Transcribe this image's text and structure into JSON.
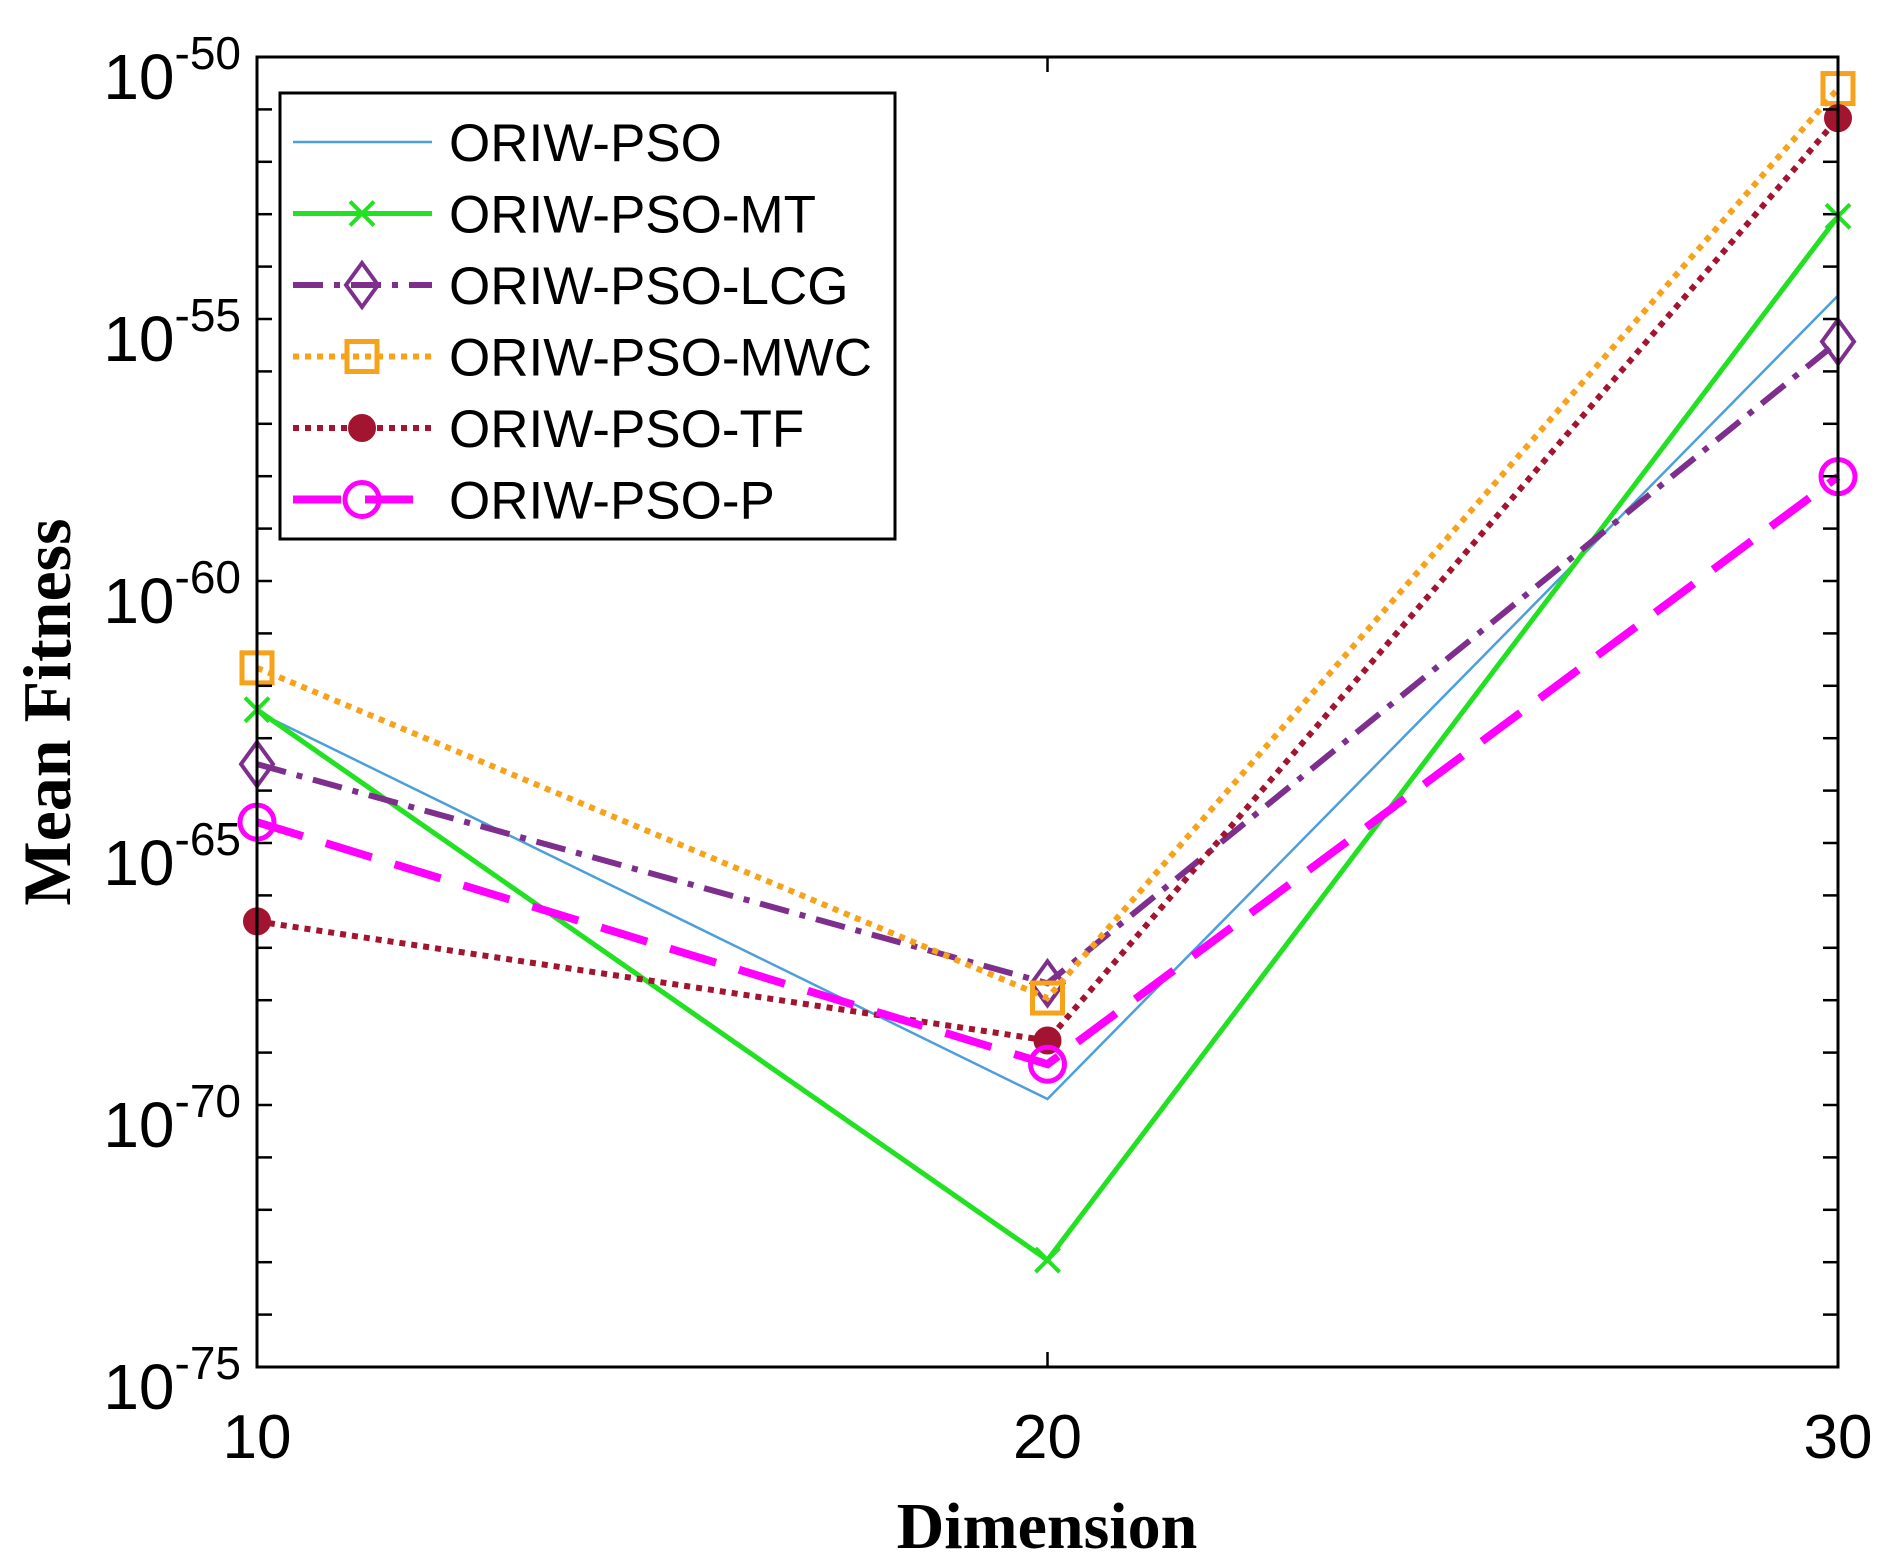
{
  "chart_data": {
    "type": "line",
    "xlabel": "Dimension",
    "ylabel": "Mean Fitness",
    "x": [
      10,
      20,
      30
    ],
    "xlim": [
      10,
      30
    ],
    "ylim": [
      1e-75,
      1e-50
    ],
    "yscale": "log",
    "grid": false,
    "legend": "top-left",
    "xticks": [
      "10",
      "20",
      "30"
    ],
    "yticks": [
      {
        "base": "10",
        "exp": "-50"
      },
      {
        "base": "10",
        "exp": "-55"
      },
      {
        "base": "10",
        "exp": "-60"
      },
      {
        "base": "10",
        "exp": "-65"
      },
      {
        "base": "10",
        "exp": "-70"
      },
      {
        "base": "10",
        "exp": "-75"
      }
    ],
    "series": [
      {
        "name": "ORIW-PSO",
        "color": "#4C9FDB",
        "line": "solid",
        "marker": "none",
        "values": [
          3.2e-63,
          1.3e-70,
          2.8e-55
        ]
      },
      {
        "name": "ORIW-PSO-MT",
        "color": "#22E022",
        "line": "solid",
        "marker": "x",
        "values": [
          3.5e-63,
          1.1e-73,
          9.1e-54
        ]
      },
      {
        "name": "ORIW-PSO-LCG",
        "color": "#7E2F8E",
        "line": "dash-dot",
        "marker": "diamond",
        "values": [
          3.2e-64,
          2.1e-68,
          3.7e-56
        ]
      },
      {
        "name": "ORIW-PSO-MWC",
        "color": "#F7A21B",
        "line": "dotted",
        "marker": "square",
        "values": [
          2.2e-62,
          1.1e-68,
          2.5e-51
        ]
      },
      {
        "name": "ORIW-PSO-TF",
        "color": "#A2142F",
        "line": "dotted",
        "marker": "filled-circle",
        "values": [
          3.2e-67,
          1.7e-69,
          6.8e-52
        ]
      },
      {
        "name": "ORIW-PSO-P",
        "color": "#FF00FF",
        "line": "dashed",
        "marker": "circle",
        "values": [
          2.5e-65,
          6e-70,
          9.8e-59
        ]
      }
    ]
  }
}
